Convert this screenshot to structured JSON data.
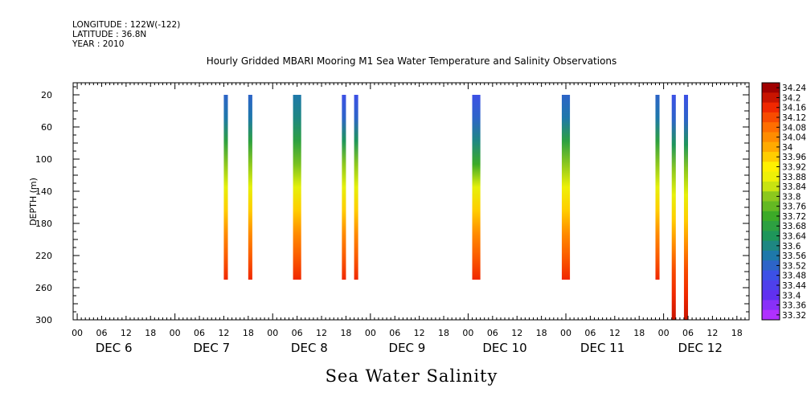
{
  "meta": {
    "longitude": "LONGITUDE : 122W(-122)",
    "latitude": "LATITUDE : 36.8N",
    "year": "YEAR : 2010"
  },
  "chart_data": {
    "type": "heatmap",
    "title": "Hourly Gridded MBARI Mooring M1 Sea Water Temperature and Salinity Observations",
    "xlabel": "Sea Water Salinity",
    "ylabel": "DEPTH (m)",
    "x_unit": "hours since Dec 6 00:00",
    "xlim": [
      -1,
      165
    ],
    "ylim": [
      300,
      5
    ],
    "yticks": [
      20,
      60,
      100,
      140,
      180,
      220,
      260,
      300
    ],
    "x_hour_ticks": [
      "00",
      "06",
      "12",
      "18"
    ],
    "x_day_labels": [
      "DEC  6",
      "DEC  7",
      "DEC  8",
      "DEC  9",
      "DEC 10",
      "DEC 11",
      "DEC 12"
    ],
    "colorbar": {
      "labels": [
        "34.24",
        "34.2",
        "34.16",
        "34.12",
        "34.08",
        "34.04",
        "34",
        "33.96",
        "33.92",
        "33.88",
        "33.84",
        "33.8",
        "33.76",
        "33.72",
        "33.68",
        "33.64",
        "33.6",
        "33.56",
        "33.52",
        "33.48",
        "33.44",
        "33.4",
        "33.36",
        "33.32"
      ],
      "min": 33.32,
      "max": 34.24
    },
    "profiles": [
      {
        "start": 36,
        "end": 37,
        "top": 20,
        "bottom": 250,
        "values": [
          33.52,
          33.56,
          33.68,
          33.8,
          33.86,
          33.96,
          34.04,
          34.1,
          34.16
        ]
      },
      {
        "start": 42,
        "end": 43,
        "top": 20,
        "bottom": 250,
        "values": [
          33.52,
          33.56,
          33.68,
          33.8,
          33.86,
          33.96,
          34.04,
          34.1,
          34.16
        ]
      },
      {
        "start": 53,
        "end": 55,
        "top": 20,
        "bottom": 250,
        "values": [
          33.56,
          33.6,
          33.68,
          33.78,
          33.86,
          33.96,
          34.04,
          34.1,
          34.16
        ]
      },
      {
        "start": 65,
        "end": 66,
        "top": 20,
        "bottom": 250,
        "values": [
          33.48,
          33.52,
          33.64,
          33.8,
          33.86,
          33.96,
          34.04,
          34.1,
          34.16
        ]
      },
      {
        "start": 68,
        "end": 69,
        "top": 20,
        "bottom": 250,
        "values": [
          33.48,
          33.52,
          33.64,
          33.8,
          33.86,
          33.96,
          34.04,
          34.1,
          34.16
        ]
      },
      {
        "start": 97,
        "end": 99,
        "top": 20,
        "bottom": 250,
        "values": [
          33.48,
          33.52,
          33.6,
          33.72,
          33.86,
          33.96,
          34.04,
          34.1,
          34.16
        ]
      },
      {
        "start": 119,
        "end": 121,
        "top": 20,
        "bottom": 250,
        "values": [
          33.52,
          33.56,
          33.68,
          33.8,
          33.88,
          33.96,
          34.04,
          34.1,
          34.16
        ]
      },
      {
        "start": 142,
        "end": 143,
        "top": 20,
        "bottom": 250,
        "values": [
          33.52,
          33.56,
          33.68,
          33.8,
          33.86,
          33.96,
          34.04,
          34.1,
          34.16
        ]
      },
      {
        "start": 146,
        "end": 147,
        "top": 20,
        "bottom": 300,
        "values": [
          33.48,
          33.52,
          33.64,
          33.8,
          33.86,
          33.96,
          34.04,
          34.12,
          34.16,
          34.2
        ]
      },
      {
        "start": 149,
        "end": 150,
        "top": 20,
        "bottom": 300,
        "values": [
          33.48,
          33.52,
          33.64,
          33.8,
          33.86,
          33.96,
          34.04,
          34.12,
          34.16,
          34.2
        ]
      }
    ]
  }
}
